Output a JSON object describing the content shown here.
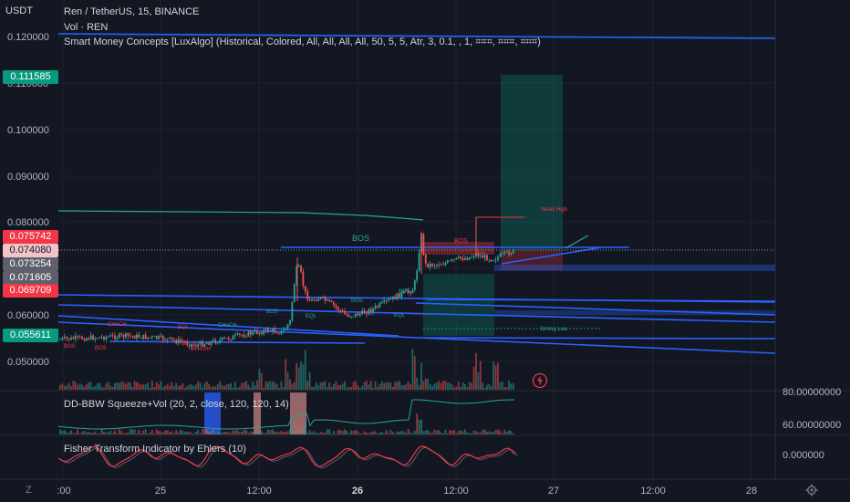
{
  "header": {
    "symbol_line": "Ren / TetherUS, 15, BINANCE",
    "volume_line": "Vol · REN",
    "smc_line": "Smart Money Concepts [LuxAlgo] (Historical, Colored, All, All, All, All, 50, 5, 5, Atr, 3, 0.1, , 1, ⌗⌗⌗, ⌗⌗⌗, ⌗⌗⌗)"
  },
  "price_axis": {
    "unit": "USDT",
    "ticks": [
      "0.120000",
      "0.110000",
      "0.100000",
      "0.090000",
      "0.080000",
      "0.060000",
      "0.050000"
    ]
  },
  "price_pills": [
    {
      "value": "0.111585",
      "bg": "#089981",
      "fg": "#ffffff"
    },
    {
      "value": "0.075742",
      "bg": "#f23645",
      "fg": "#ffffff"
    },
    {
      "value": "0.074080",
      "bg": "#f0c4c8",
      "fg": "#131722"
    },
    {
      "value": "0.073254",
      "bg": "#5d606b",
      "fg": "#ffffff"
    },
    {
      "value": "0.071605",
      "bg": "#5d606b",
      "fg": "#ffffff"
    },
    {
      "value": "0.069709",
      "bg": "#f23645",
      "fg": "#ffffff"
    },
    {
      "value": "0.055611",
      "bg": "#089981",
      "fg": "#ffffff"
    }
  ],
  "time_axis": [
    {
      "label": ":00",
      "bold": false
    },
    {
      "label": "25",
      "bold": false
    },
    {
      "label": "12:00",
      "bold": false
    },
    {
      "label": "26",
      "bold": true
    },
    {
      "label": "12:00",
      "bold": false
    },
    {
      "label": "27",
      "bold": false
    },
    {
      "label": "12:00",
      "bold": false
    },
    {
      "label": "28",
      "bold": false
    }
  ],
  "chart_labels": {
    "bos_main": "BOS",
    "bos_small": "BOS",
    "choch": "CHoCH",
    "eql": "EQL",
    "bos_left": "BOS",
    "bsh": "BHASH",
    "weak_high": "Weak High",
    "strong_low": "Strong Low"
  },
  "bbw_panel": {
    "legend": "DD-BBW Squeeze+Vol (20, 2, close, 120, 120, 14)",
    "axis": [
      "80.00000000",
      "60.00000000"
    ]
  },
  "fisher_panel": {
    "legend": "Fisher Transform Indicator by Ehlers (10)",
    "axis": [
      "0.000000"
    ]
  },
  "corner": {
    "left_icon": "Z",
    "right_icon": "gear-icon"
  },
  "colors": {
    "background": "#131722",
    "blue_line": "#2962ff",
    "green": "#089981",
    "red": "#f23645",
    "teal": "#26a69a"
  }
}
